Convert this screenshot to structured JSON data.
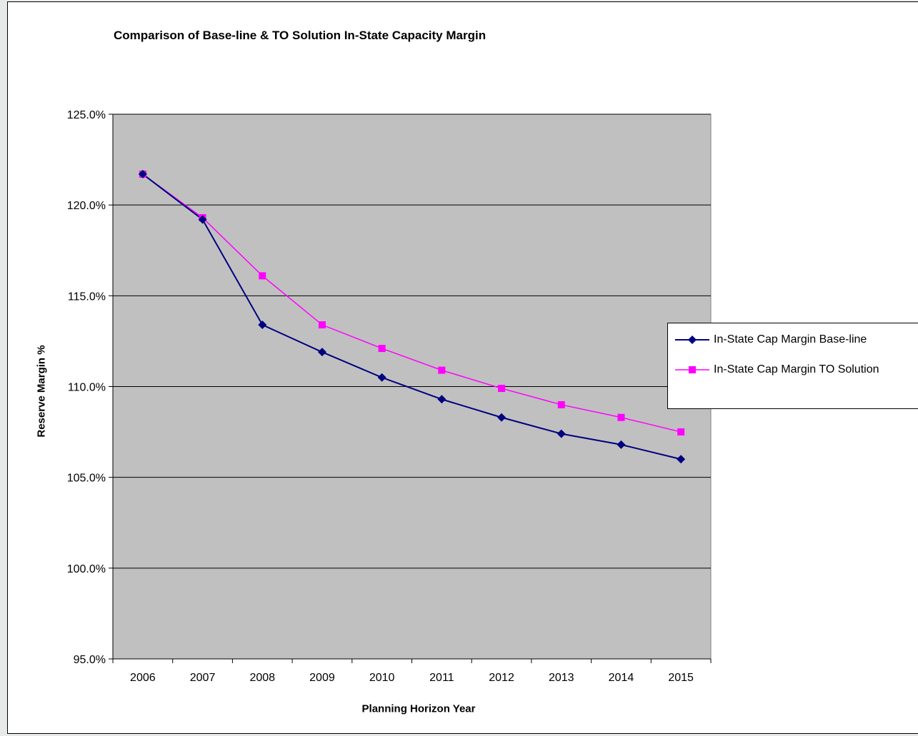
{
  "chart_data": {
    "type": "line",
    "title": "Comparison of Base-line & TO Solution In-State Capacity Margin",
    "xlabel": "Planning Horizon Year",
    "ylabel": "Reserve Margin %",
    "categories": [
      "2006",
      "2007",
      "2008",
      "2009",
      "2010",
      "2011",
      "2012",
      "2013",
      "2014",
      "2015"
    ],
    "ylim": [
      95.0,
      125.0
    ],
    "yticks": [
      "95.0%",
      "100.0%",
      "105.0%",
      "110.0%",
      "115.0%",
      "120.0%",
      "125.0%"
    ],
    "grid": "horizontal major gridlines",
    "legend_position": "right",
    "plot_background": "#c0c0c0",
    "series": [
      {
        "name": "In-State Cap Margin Base-line",
        "color": "#000080",
        "marker": "diamond",
        "values": [
          121.7,
          119.2,
          113.4,
          111.9,
          110.5,
          109.3,
          108.3,
          107.4,
          106.8,
          106.0
        ]
      },
      {
        "name": "In-State Cap Margin TO Solution",
        "color": "#ff00ff",
        "marker": "square",
        "values": [
          121.7,
          119.3,
          116.1,
          113.4,
          112.1,
          110.9,
          109.9,
          109.0,
          108.3,
          107.5
        ]
      }
    ]
  }
}
